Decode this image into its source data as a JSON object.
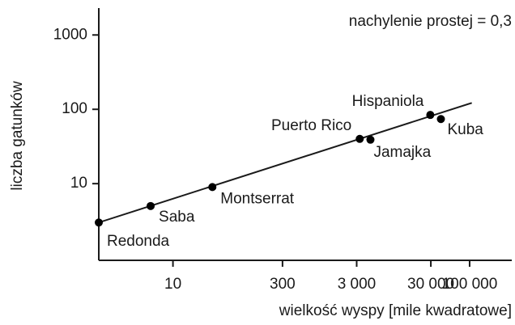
{
  "chart_data": {
    "type": "scatter",
    "annotation": "nachylenie prostej = 0,3",
    "xlabel": "wielkość wyspy [mile kwadratowe]",
    "ylabel": "liczba gatunków",
    "log_x": true,
    "log_y": true,
    "grid": false,
    "color": "#000000",
    "xlim": [
      1,
      370000
    ],
    "ylim": [
      0.93,
      2300
    ],
    "xticks": [
      10,
      300,
      {
        "value": 3000,
        "label": "3 000"
      },
      {
        "value": 30000,
        "label": "30 000"
      },
      {
        "value": 100000,
        "label": "100 000"
      }
    ],
    "yticks": [
      10,
      100,
      1000
    ],
    "series": [
      {
        "name": null,
        "color": "#000000",
        "labels": [
          "Redonda",
          "Saba",
          "Montserrat",
          "Puerto Rico",
          "Jamajka",
          "Hispaniola",
          "Kuba"
        ],
        "x": [
          1,
          5,
          34,
          3300,
          4600,
          29500,
          41000
        ],
        "values": [
          3,
          5,
          9,
          40,
          39,
          84,
          74
        ]
      }
    ],
    "fit_line": {
      "x": [
        1,
        107000
      ],
      "values": [
        3,
        122
      ]
    }
  }
}
